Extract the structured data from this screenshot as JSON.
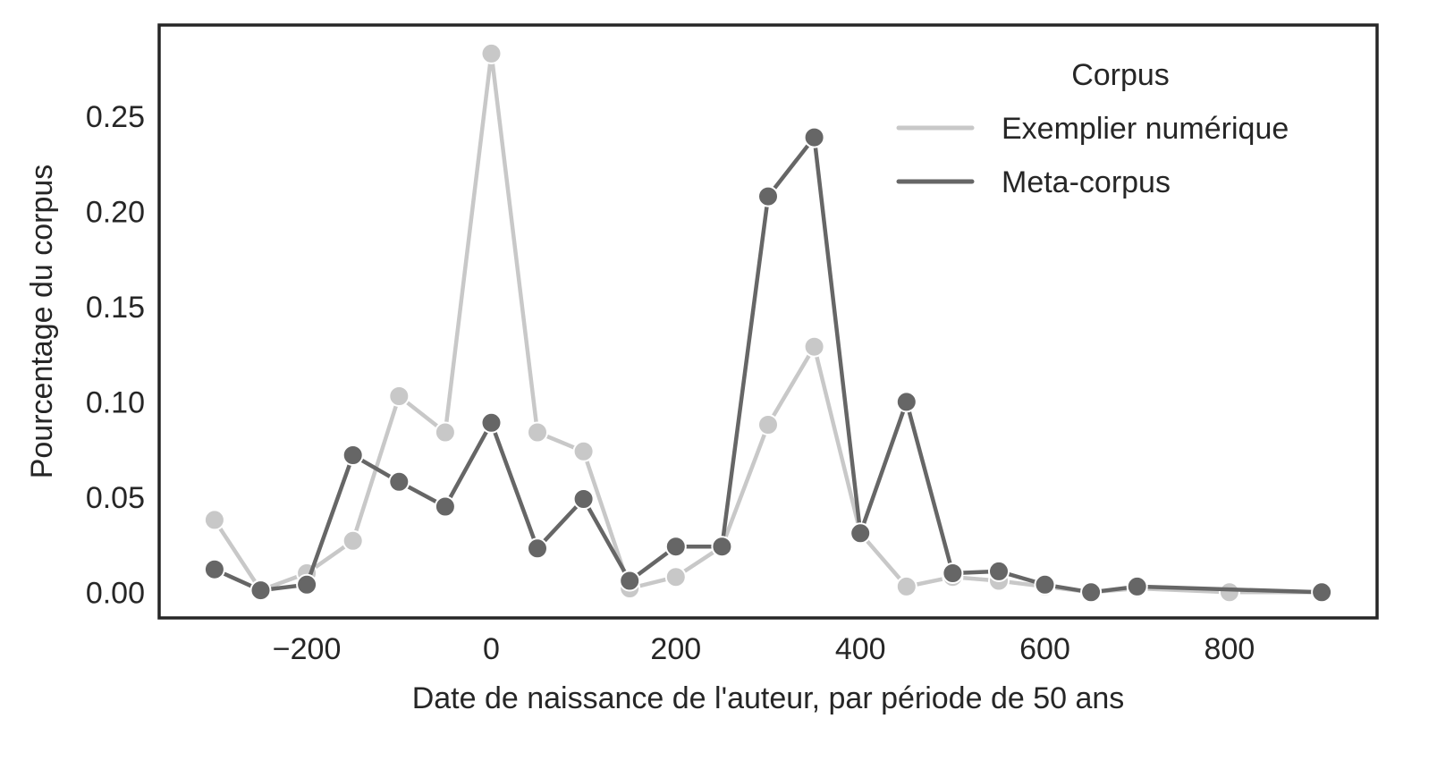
{
  "chart_data": {
    "type": "line",
    "xlabel": "Date de naissance de l'auteur, par période de 50 ans",
    "ylabel": "Pourcentage du corpus",
    "xlim": [
      -360,
      960
    ],
    "ylim": [
      -0.0135,
      0.298
    ],
    "xticks": [
      -200,
      0,
      200,
      400,
      600,
      800
    ],
    "xtick_labels": [
      "−200",
      "0",
      "200",
      "400",
      "600",
      "800"
    ],
    "yticks": [
      0.0,
      0.05,
      0.1,
      0.15,
      0.2,
      0.25
    ],
    "ytick_labels": [
      "0.00",
      "0.05",
      "0.10",
      "0.15",
      "0.20",
      "0.25"
    ],
    "grid": false,
    "legend": {
      "title": "Corpus",
      "placement": "top-right"
    },
    "series": [
      {
        "name": "Exemplier numérique",
        "color": "#c8c8c8",
        "x": [
          -300,
          -250,
          -200,
          -150,
          -100,
          -50,
          0,
          50,
          100,
          150,
          200,
          250,
          300,
          350,
          400,
          450,
          500,
          550,
          600,
          650,
          700,
          800,
          900
        ],
        "values": [
          0.038,
          0.001,
          0.01,
          0.027,
          0.103,
          0.084,
          0.283,
          0.084,
          0.074,
          0.002,
          0.008,
          0.024,
          0.088,
          0.129,
          0.031,
          0.003,
          0.008,
          0.006,
          0.003,
          0.0,
          0.002,
          0.0,
          0.0
        ]
      },
      {
        "name": "Meta-corpus",
        "color": "#666666",
        "x": [
          -300,
          -250,
          -200,
          -150,
          -100,
          -50,
          0,
          50,
          100,
          150,
          200,
          250,
          300,
          350,
          400,
          450,
          500,
          550,
          600,
          650,
          700,
          900
        ],
        "values": [
          0.012,
          0.001,
          0.004,
          0.072,
          0.058,
          0.045,
          0.089,
          0.023,
          0.049,
          0.006,
          0.024,
          0.024,
          0.208,
          0.239,
          0.031,
          0.1,
          0.01,
          0.011,
          0.004,
          0.0,
          0.003,
          0.0
        ]
      }
    ]
  }
}
